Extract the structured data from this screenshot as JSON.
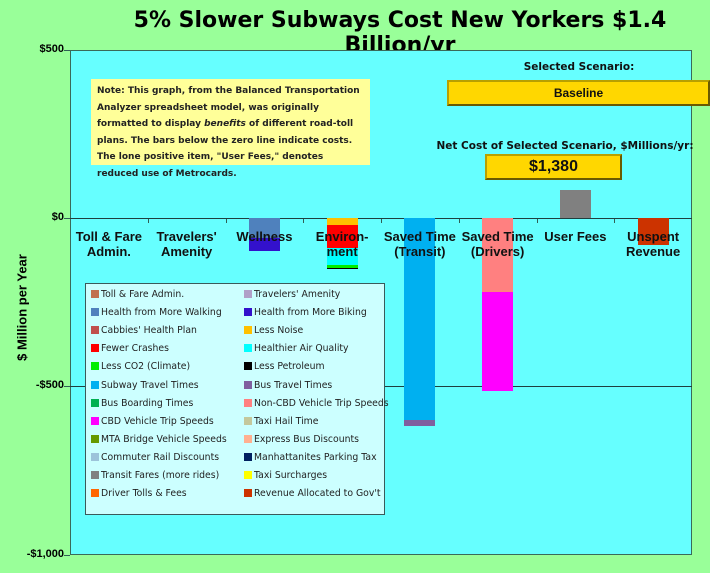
{
  "title": "5% Slower Subways Cost New Yorkers $1.4 Billion/yr",
  "note": {
    "pre": "Note: This graph, from the Balanced Transportation Analyzer spreadsheet model, was originally formatted to display ",
    "emph": "benefits",
    "post": " of different road-toll plans. The bars below the zero line indicate costs. The lone positive item, \"User Fees,\" denotes reduced use of Metrocards."
  },
  "scenario": {
    "label": "Selected Scenario:",
    "value": "Baseline",
    "net_cost_label": "Net Cost of Selected Scenario, $Millions/yr:",
    "net_cost_value": "$1,380"
  },
  "colors": {
    "page_bg": "#99ff99",
    "plot_bg": "#66ffff",
    "legend_bg": "#ccffff",
    "note_bg": "#ffff99",
    "button": "#ffd700"
  },
  "chart_data": {
    "type": "bar",
    "stacked": true,
    "title": "5% Slower Subways Cost New Yorkers $1.4 Billion/yr",
    "xlabel": "",
    "ylabel": "$ Million per Year",
    "ylim": [
      -1000,
      500
    ],
    "yticks": [
      "$500",
      "$0",
      "-$500",
      "-$1,000"
    ],
    "ytick_values": [
      500,
      0,
      -500,
      -1000
    ],
    "grid": false,
    "legend_position": "inside-lower-left",
    "categories": [
      "Toll & Fare Admin.",
      "Travelers' Amenity",
      "Wellness",
      "Environ-ment",
      "Saved Time (Transit)",
      "Saved Time (Drivers)",
      "User Fees",
      "Unspent Revenue"
    ],
    "category_lines": [
      [
        "Toll & Fare",
        "Admin."
      ],
      [
        "Travelers'",
        "Amenity"
      ],
      [
        "Wellness"
      ],
      [
        "Environ-",
        "ment"
      ],
      [
        "Saved Time",
        "(Transit)"
      ],
      [
        "Saved Time",
        "(Drivers)"
      ],
      [
        "User Fees"
      ],
      [
        "Unspent",
        "Revenue"
      ]
    ],
    "series": [
      {
        "name": "Toll & Fare Admin.",
        "color": "#c0704f",
        "values": [
          0,
          0,
          0,
          0,
          0,
          0,
          0,
          0
        ]
      },
      {
        "name": "Travelers' Amenity",
        "color": "#b0a0c8",
        "values": [
          0,
          0,
          0,
          0,
          0,
          0,
          0,
          0
        ]
      },
      {
        "name": "Health from More Walking",
        "color": "#4f81bd",
        "values": [
          0,
          0,
          -59,
          0,
          0,
          0,
          0,
          0
        ]
      },
      {
        "name": "Health from More Biking",
        "color": "#3311cc",
        "values": [
          0,
          0,
          -39,
          0,
          0,
          0,
          0,
          0
        ]
      },
      {
        "name": "Cabbies' Health Plan",
        "color": "#c0504d",
        "values": [
          0,
          0,
          0,
          0,
          0,
          0,
          0,
          0
        ]
      },
      {
        "name": "Less Noise",
        "color": "#ffc000",
        "values": [
          0,
          0,
          0,
          -21,
          0,
          0,
          0,
          0
        ]
      },
      {
        "name": "Fewer Crashes",
        "color": "#ff0000",
        "values": [
          0,
          0,
          0,
          -68,
          0,
          0,
          0,
          0
        ]
      },
      {
        "name": "Healthier Air Quality",
        "color": "#00ffff",
        "values": [
          0,
          0,
          0,
          -50,
          0,
          0,
          0,
          0
        ]
      },
      {
        "name": "Less CO2 (Climate)",
        "color": "#00ee00",
        "values": [
          0,
          0,
          0,
          -9,
          0,
          0,
          0,
          0
        ]
      },
      {
        "name": "Less Petroleum",
        "color": "#000000",
        "values": [
          0,
          0,
          0,
          -4,
          0,
          0,
          0,
          0
        ]
      },
      {
        "name": "Subway Travel Times",
        "color": "#00b0f0",
        "values": [
          0,
          0,
          0,
          0,
          -601,
          0,
          0,
          0
        ]
      },
      {
        "name": "Bus Travel Times",
        "color": "#7f5f9f",
        "values": [
          0,
          0,
          0,
          0,
          -19,
          0,
          0,
          0
        ]
      },
      {
        "name": "Bus Boarding Times",
        "color": "#00b050",
        "values": [
          0,
          0,
          0,
          0,
          0,
          0,
          0,
          0
        ]
      },
      {
        "name": "Non-CBD Vehicle Trip Speeds",
        "color": "#ff8080",
        "values": [
          0,
          0,
          0,
          0,
          0,
          -220,
          0,
          0
        ]
      },
      {
        "name": "CBD Vehicle Trip Speeds",
        "color": "#ff00ff",
        "values": [
          0,
          0,
          0,
          0,
          0,
          -295,
          0,
          0
        ]
      },
      {
        "name": "Taxi Hail Time",
        "color": "#c4c89c",
        "values": [
          0,
          0,
          0,
          0,
          0,
          0,
          0,
          0
        ]
      },
      {
        "name": "MTA Bridge Vehicle Speeds",
        "color": "#669900",
        "values": [
          0,
          0,
          0,
          0,
          0,
          0,
          0,
          0
        ]
      },
      {
        "name": "Express Bus Discounts",
        "color": "#ffb090",
        "values": [
          0,
          0,
          0,
          0,
          0,
          0,
          0,
          0
        ]
      },
      {
        "name": "Commuter Rail Discounts",
        "color": "#9cc3da",
        "values": [
          0,
          0,
          0,
          0,
          0,
          0,
          0,
          0
        ]
      },
      {
        "name": "Manhattanites Parking Tax",
        "color": "#002060",
        "values": [
          0,
          0,
          0,
          0,
          0,
          0,
          0,
          0
        ]
      },
      {
        "name": "Transit Fares (more rides)",
        "color": "#808080",
        "values": [
          0,
          0,
          0,
          0,
          0,
          0,
          84,
          0
        ]
      },
      {
        "name": "Taxi Surcharges",
        "color": "#ffff00",
        "values": [
          0,
          0,
          0,
          0,
          0,
          0,
          0,
          0
        ]
      },
      {
        "name": "Driver Tolls & Fees",
        "color": "#ff6600",
        "values": [
          0,
          0,
          0,
          0,
          0,
          0,
          0,
          0
        ]
      },
      {
        "name": "Revenue Allocated to Gov't",
        "color": "#cc3300",
        "values": [
          0,
          0,
          0,
          0,
          0,
          0,
          0,
          -80
        ]
      }
    ]
  }
}
